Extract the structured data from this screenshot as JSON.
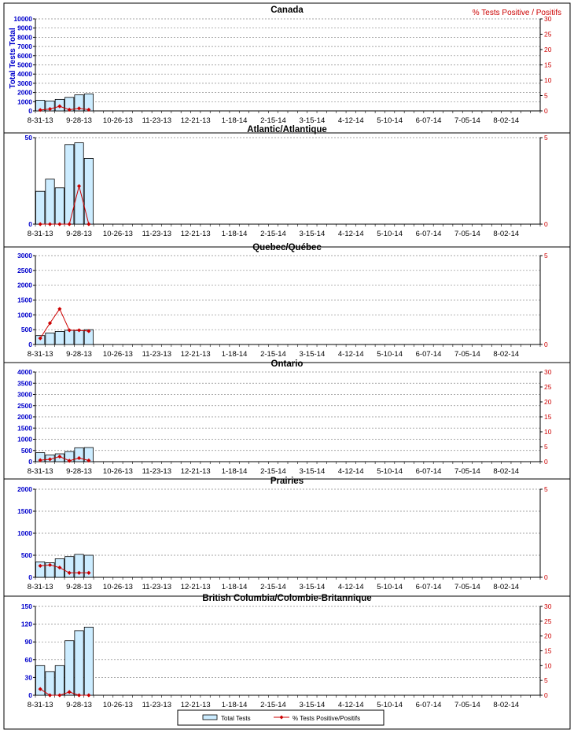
{
  "figure": {
    "left_axis_title": "Total Tests Total",
    "right_axis_title": "% Tests Positive / Positifs"
  },
  "x_tick_labels": [
    "8-31-13",
    "9-28-13",
    "10-26-13",
    "11-23-13",
    "12-21-13",
    "1-18-14",
    "2-15-14",
    "3-15-14",
    "4-12-14",
    "5-10-14",
    "6-07-14",
    "7-05-14",
    "8-02-14"
  ],
  "legend": {
    "bar_label": "Total Tests",
    "line_label": "% Tests Positive/Positifs"
  },
  "colors": {
    "bar_fill": "#CCECFF",
    "bar_stroke": "#000000",
    "line": "#CC0000",
    "left_axis_text": "#0000CC",
    "right_axis_text": "#CC0000",
    "grid": "#888888"
  },
  "chart_data": [
    {
      "type": "bar",
      "title": "Canada",
      "weeks": 52,
      "ylim": [
        0,
        10000
      ],
      "yticks": [
        0,
        1000,
        2000,
        3000,
        4000,
        5000,
        6000,
        7000,
        8000,
        9000,
        10000
      ],
      "y2lim": [
        0,
        30
      ],
      "y2ticks": [
        0,
        5,
        10,
        15,
        20,
        25,
        30
      ],
      "series": [
        {
          "name": "Total Tests",
          "axis": "left",
          "values": [
            1150,
            1080,
            1250,
            1470,
            1740,
            1850
          ]
        },
        {
          "name": "% Tests Positive/Positifs",
          "axis": "right",
          "values": [
            0.3,
            0.6,
            1.5,
            0.4,
            0.8,
            0.4
          ]
        }
      ]
    },
    {
      "type": "bar",
      "title": "Atlantic/Atlantique",
      "weeks": 52,
      "ylim": [
        0,
        50
      ],
      "yticks": [
        0,
        50
      ],
      "y2lim": [
        0,
        5
      ],
      "y2ticks": [
        0,
        5
      ],
      "series": [
        {
          "name": "Total Tests",
          "axis": "left",
          "values": [
            19,
            26,
            21,
            46,
            47,
            38
          ]
        },
        {
          "name": "% Tests Positive/Positifs",
          "axis": "right",
          "values": [
            0,
            0,
            0,
            0,
            2.2,
            0
          ]
        }
      ]
    },
    {
      "type": "bar",
      "title": "Quebec/Québec",
      "weeks": 52,
      "ylim": [
        0,
        3000
      ],
      "yticks": [
        0,
        500,
        1000,
        1500,
        2000,
        2500,
        3000
      ],
      "y2lim": [
        0,
        5
      ],
      "y2ticks": [
        0,
        5
      ],
      "series": [
        {
          "name": "Total Tests",
          "axis": "left",
          "values": [
            300,
            390,
            440,
            480,
            470,
            500
          ]
        },
        {
          "name": "% Tests Positive/Positifs",
          "axis": "right",
          "values": [
            0.35,
            1.2,
            2.0,
            0.8,
            0.8,
            0.75
          ]
        }
      ]
    },
    {
      "type": "bar",
      "title": "Ontario",
      "weeks": 52,
      "ylim": [
        0,
        4000
      ],
      "yticks": [
        0,
        500,
        1000,
        1500,
        2000,
        2500,
        3000,
        3500,
        4000
      ],
      "y2lim": [
        0,
        30
      ],
      "y2ticks": [
        0,
        5,
        10,
        15,
        20,
        25,
        30
      ],
      "series": [
        {
          "name": "Total Tests",
          "axis": "left",
          "values": [
            400,
            300,
            350,
            450,
            620,
            630
          ]
        },
        {
          "name": "% Tests Positive/Positifs",
          "axis": "right",
          "values": [
            0.5,
            0.8,
            1.7,
            0.3,
            1.2,
            0.4
          ]
        }
      ]
    },
    {
      "type": "bar",
      "title": "Prairies",
      "weeks": 52,
      "ylim": [
        0,
        2000
      ],
      "yticks": [
        0,
        500,
        1000,
        1500,
        2000
      ],
      "y2lim": [
        0,
        5
      ],
      "y2ticks": [
        0,
        5
      ],
      "series": [
        {
          "name": "Total Tests",
          "axis": "left",
          "values": [
            350,
            330,
            420,
            470,
            520,
            500
          ]
        },
        {
          "name": "% Tests Positive/Positifs",
          "axis": "right",
          "values": [
            0.65,
            0.7,
            0.55,
            0.25,
            0.25,
            0.25
          ]
        }
      ]
    },
    {
      "type": "bar",
      "title": "British Columbia/Colombie-Britannique",
      "weeks": 52,
      "ylim": [
        0,
        150
      ],
      "yticks": [
        0,
        30,
        60,
        90,
        120,
        150
      ],
      "y2lim": [
        0,
        30
      ],
      "y2ticks": [
        0,
        5,
        10,
        15,
        20,
        25,
        30
      ],
      "series": [
        {
          "name": "Total Tests",
          "axis": "left",
          "values": [
            50,
            40,
            50,
            92,
            109,
            115
          ]
        },
        {
          "name": "% Tests Positive/Positifs",
          "axis": "right",
          "values": [
            2.1,
            0,
            0,
            1.1,
            0,
            0
          ]
        }
      ]
    }
  ]
}
